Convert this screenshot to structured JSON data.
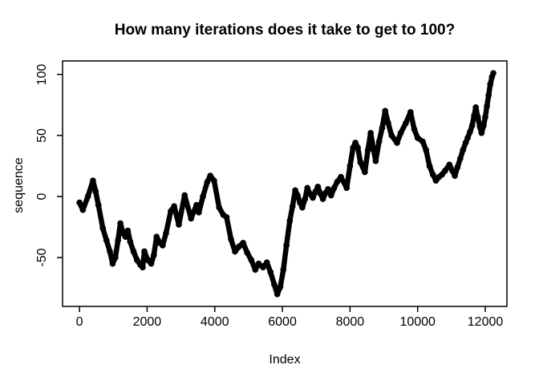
{
  "figure": {
    "background": "#ffffff",
    "foreground": "#000000"
  },
  "chart_data": {
    "type": "line",
    "title": "How many iterations does it take to get to 100?",
    "xlabel": "Index",
    "ylabel": "sequence",
    "x_ticks": [
      0,
      2000,
      4000,
      6000,
      8000,
      10000,
      12000
    ],
    "y_ticks": [
      -50,
      0,
      50,
      100
    ],
    "xlim": [
      -500,
      12640
    ],
    "ylim": [
      -90,
      111
    ],
    "grid": false,
    "legend": "none",
    "marker": "o",
    "line_color": "#000000",
    "series": [
      {
        "name": "sequence",
        "points": [
          [
            0,
            -5
          ],
          [
            100,
            -11
          ],
          [
            250,
            0
          ],
          [
            400,
            13
          ],
          [
            480,
            4
          ],
          [
            560,
            -7
          ],
          [
            690,
            -26
          ],
          [
            800,
            -36
          ],
          [
            900,
            -45
          ],
          [
            980,
            -55
          ],
          [
            1060,
            -50
          ],
          [
            1140,
            -36
          ],
          [
            1210,
            -22
          ],
          [
            1290,
            -30
          ],
          [
            1360,
            -33
          ],
          [
            1430,
            -28
          ],
          [
            1500,
            -37
          ],
          [
            1600,
            -45
          ],
          [
            1700,
            -52
          ],
          [
            1800,
            -56
          ],
          [
            1870,
            -58
          ],
          [
            1920,
            -45
          ],
          [
            2020,
            -52
          ],
          [
            2120,
            -55
          ],
          [
            2200,
            -48
          ],
          [
            2280,
            -33
          ],
          [
            2380,
            -38
          ],
          [
            2460,
            -40
          ],
          [
            2560,
            -30
          ],
          [
            2700,
            -12
          ],
          [
            2800,
            -8
          ],
          [
            2940,
            -23
          ],
          [
            3110,
            1
          ],
          [
            3300,
            -18
          ],
          [
            3460,
            -7
          ],
          [
            3530,
            -13
          ],
          [
            3650,
            0
          ],
          [
            3780,
            12
          ],
          [
            3870,
            17
          ],
          [
            3980,
            13
          ],
          [
            4130,
            -9
          ],
          [
            4250,
            -15
          ],
          [
            4350,
            -17
          ],
          [
            4480,
            -35
          ],
          [
            4600,
            -45
          ],
          [
            4720,
            -41
          ],
          [
            4840,
            -38
          ],
          [
            4960,
            -46
          ],
          [
            5080,
            -52
          ],
          [
            5200,
            -60
          ],
          [
            5300,
            -55
          ],
          [
            5430,
            -58
          ],
          [
            5540,
            -54
          ],
          [
            5650,
            -62
          ],
          [
            5760,
            -72
          ],
          [
            5850,
            -80
          ],
          [
            5940,
            -74
          ],
          [
            6030,
            -60
          ],
          [
            6120,
            -40
          ],
          [
            6220,
            -20
          ],
          [
            6300,
            -8
          ],
          [
            6380,
            5
          ],
          [
            6450,
            1
          ],
          [
            6520,
            -5
          ],
          [
            6590,
            -9
          ],
          [
            6670,
            -2
          ],
          [
            6740,
            7
          ],
          [
            6820,
            2
          ],
          [
            6900,
            -1
          ],
          [
            6980,
            4
          ],
          [
            7050,
            8
          ],
          [
            7130,
            2
          ],
          [
            7200,
            -2
          ],
          [
            7280,
            3
          ],
          [
            7350,
            6
          ],
          [
            7440,
            1
          ],
          [
            7530,
            7
          ],
          [
            7620,
            12
          ],
          [
            7730,
            16
          ],
          [
            7900,
            7
          ],
          [
            8000,
            25
          ],
          [
            8090,
            40
          ],
          [
            8160,
            44
          ],
          [
            8230,
            40
          ],
          [
            8310,
            28
          ],
          [
            8440,
            20
          ],
          [
            8530,
            38
          ],
          [
            8610,
            52
          ],
          [
            8700,
            38
          ],
          [
            8760,
            29
          ],
          [
            8860,
            45
          ],
          [
            8950,
            56
          ],
          [
            9040,
            70
          ],
          [
            9130,
            60
          ],
          [
            9230,
            50
          ],
          [
            9390,
            44
          ],
          [
            9500,
            52
          ],
          [
            9650,
            60
          ],
          [
            9790,
            69
          ],
          [
            9900,
            55
          ],
          [
            10000,
            48
          ],
          [
            10150,
            45
          ],
          [
            10250,
            38
          ],
          [
            10350,
            25
          ],
          [
            10450,
            18
          ],
          [
            10540,
            13
          ],
          [
            10630,
            16
          ],
          [
            10720,
            18
          ],
          [
            10810,
            21
          ],
          [
            10940,
            26
          ],
          [
            11030,
            21
          ],
          [
            11100,
            17
          ],
          [
            11180,
            24
          ],
          [
            11260,
            31
          ],
          [
            11340,
            38
          ],
          [
            11420,
            44
          ],
          [
            11480,
            48
          ],
          [
            11550,
            53
          ],
          [
            11610,
            58
          ],
          [
            11670,
            66
          ],
          [
            11720,
            73
          ],
          [
            11780,
            65
          ],
          [
            11840,
            57
          ],
          [
            11890,
            52
          ],
          [
            11950,
            58
          ],
          [
            12000,
            65
          ],
          [
            12050,
            74
          ],
          [
            12100,
            83
          ],
          [
            12150,
            92
          ],
          [
            12200,
            98
          ],
          [
            12240,
            101
          ]
        ]
      }
    ]
  }
}
